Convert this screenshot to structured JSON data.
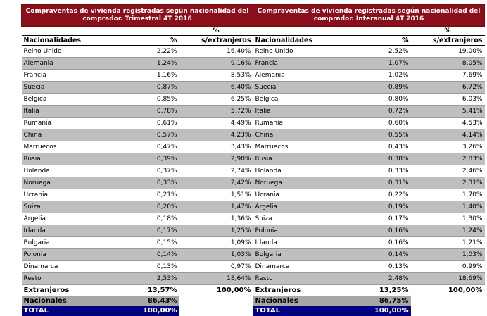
{
  "tables": [
    {
      "title": "Compraventas de vivienda registradas según nacionalidad del comprador. Trimestral 4T 2016",
      "col_nat": "Nacionalidades",
      "col_pct": "%",
      "col_ext_top": "%",
      "col_ext": "s/extranjeros",
      "rows": [
        {
          "name": "Reino Unido",
          "pct": "2,22%",
          "ext": "16,40%"
        },
        {
          "name": "Alemania",
          "pct": "1,24%",
          "ext": "9,16%"
        },
        {
          "name": "Francia",
          "pct": "1,16%",
          "ext": "8,53%"
        },
        {
          "name": "Suecia",
          "pct": "0,87%",
          "ext": "6,40%"
        },
        {
          "name": "Bélgica",
          "pct": "0,85%",
          "ext": "6,25%"
        },
        {
          "name": "Italia",
          "pct": "0,78%",
          "ext": "5,72%"
        },
        {
          "name": "Rumanía",
          "pct": "0,61%",
          "ext": "4,49%"
        },
        {
          "name": "China",
          "pct": "0,57%",
          "ext": "4,23%"
        },
        {
          "name": "Marruecos",
          "pct": "0,47%",
          "ext": "3,43%"
        },
        {
          "name": "Rusia",
          "pct": "0,39%",
          "ext": "2,90%"
        },
        {
          "name": "Holanda",
          "pct": "0,37%",
          "ext": "2,74%"
        },
        {
          "name": "Noruega",
          "pct": "0,33%",
          "ext": "2,42%"
        },
        {
          "name": "Ucrania",
          "pct": "0,21%",
          "ext": "1,51%"
        },
        {
          "name": "Suiza",
          "pct": "0,20%",
          "ext": "1,47%"
        },
        {
          "name": "Argelia",
          "pct": "0,18%",
          "ext": "1,36%"
        },
        {
          "name": "Irlanda",
          "pct": "0,17%",
          "ext": "1,25%"
        },
        {
          "name": "Bulgaria",
          "pct": "0,15%",
          "ext": "1,09%"
        },
        {
          "name": "Polonia",
          "pct": "0,14%",
          "ext": "1,03%"
        },
        {
          "name": "Dinamarca",
          "pct": "0,13%",
          "ext": "0,97%"
        },
        {
          "name": "Resto",
          "pct": "2,53%",
          "ext": "18,64%"
        }
      ],
      "extranjeros": {
        "label": "Extranjeros",
        "pct": "13,57%",
        "ext": "100,00%"
      },
      "nacionales": {
        "label": "Nacionales",
        "pct": "86,43%"
      },
      "total": {
        "label": "TOTAL",
        "pct": "100,00%"
      }
    },
    {
      "title": "Compraventas de vivienda registradas según nacionalidad del comprador. Interanual 4T 2016",
      "col_nat": "Nacionalidades",
      "col_pct": "%",
      "col_ext_top": "%",
      "col_ext": "s/extranjeros",
      "rows": [
        {
          "name": "Reino Unido",
          "pct": "2,52%",
          "ext": "19,00%"
        },
        {
          "name": "Francia",
          "pct": "1,07%",
          "ext": "8,05%"
        },
        {
          "name": "Alemania",
          "pct": "1,02%",
          "ext": "7,69%"
        },
        {
          "name": "Suecia",
          "pct": "0,89%",
          "ext": "6,72%"
        },
        {
          "name": "Bélgica",
          "pct": "0,80%",
          "ext": "6,03%"
        },
        {
          "name": "Italia",
          "pct": "0,72%",
          "ext": "5,41%"
        },
        {
          "name": "Rumanía",
          "pct": "0,60%",
          "ext": "4,53%"
        },
        {
          "name": "China",
          "pct": "0,55%",
          "ext": "4,14%"
        },
        {
          "name": "Marruecos",
          "pct": "0,43%",
          "ext": "3,26%"
        },
        {
          "name": "Rusia",
          "pct": "0,38%",
          "ext": "2,83%"
        },
        {
          "name": "Holanda",
          "pct": "0,33%",
          "ext": "2,46%"
        },
        {
          "name": "Noruega",
          "pct": "0,31%",
          "ext": "2,31%"
        },
        {
          "name": "Ucrania",
          "pct": "0,22%",
          "ext": "1,70%"
        },
        {
          "name": "Argelia",
          "pct": "0,19%",
          "ext": "1,40%"
        },
        {
          "name": "Suiza",
          "pct": "0,17%",
          "ext": "1,30%"
        },
        {
          "name": "Polonia",
          "pct": "0,16%",
          "ext": "1,24%"
        },
        {
          "name": "Irlanda",
          "pct": "0,16%",
          "ext": "1,21%"
        },
        {
          "name": "Bulgaria",
          "pct": "0,14%",
          "ext": "1,03%"
        },
        {
          "name": "Dinamarca",
          "pct": "0,13%",
          "ext": "0,99%"
        },
        {
          "name": "Resto",
          "pct": "2,48%",
          "ext": "18,69%"
        }
      ],
      "extranjeros": {
        "label": "Extranjeros",
        "pct": "13,25%",
        "ext": "100,00%"
      },
      "nacionales": {
        "label": "Nacionales",
        "pct": "86,75%"
      },
      "total": {
        "label": "TOTAL",
        "pct": "100,00%"
      }
    }
  ],
  "colors": {
    "title_bg": "#8b0f1a",
    "band": "#bfbfbf",
    "nacionales_bg": "#a6a6a6",
    "total_bg": "#000080"
  }
}
